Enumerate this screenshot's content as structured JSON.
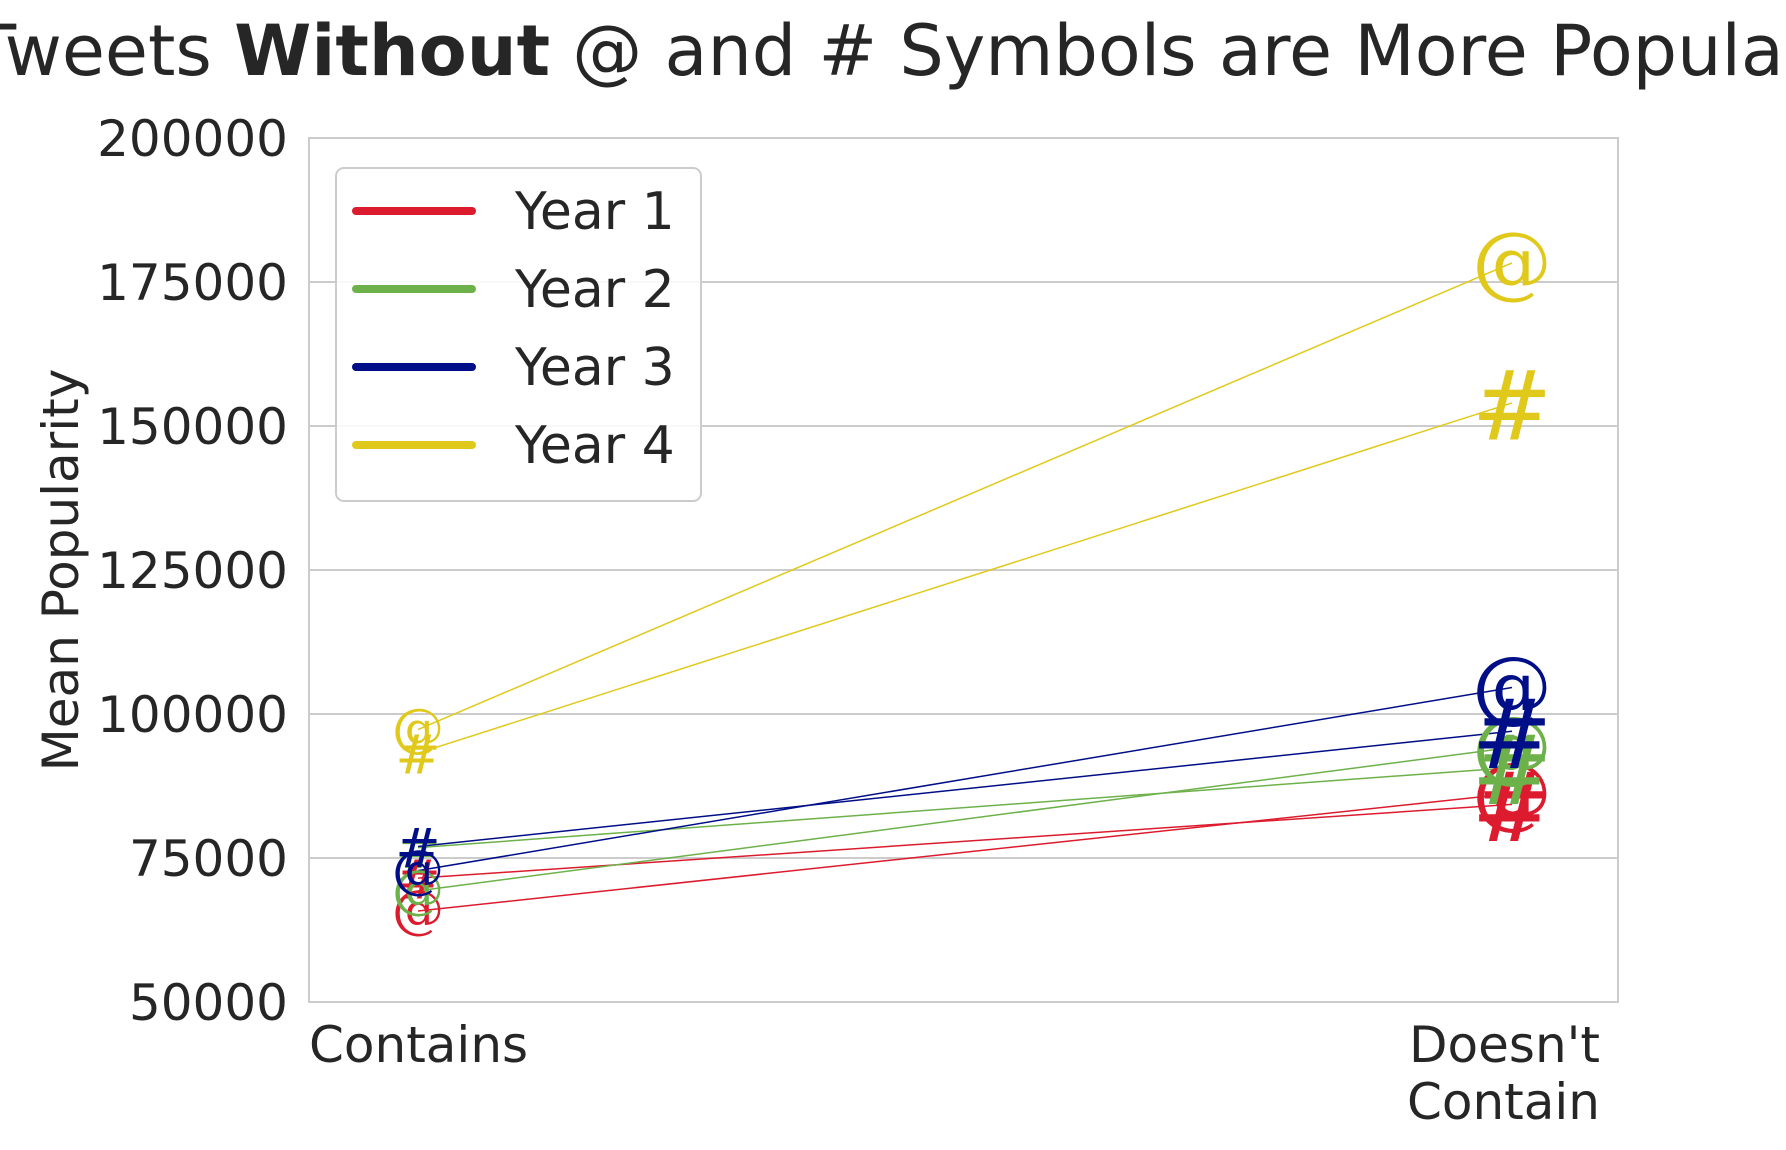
{
  "chart_data": {
    "type": "line",
    "title_parts": [
      "Tweets ",
      "Without",
      " @ and # Symbols are More Popular"
    ],
    "xlabel": "",
    "ylabel": "Mean Popularity",
    "categories": [
      [
        "Contains"
      ],
      [
        "Doesn't",
        "Contain"
      ]
    ],
    "ylim": [
      50000,
      200000
    ],
    "yticks": [
      "50000",
      "75000",
      "100000",
      "125000",
      "150000",
      "175000",
      "200000"
    ],
    "grid": "horizontal",
    "legend_position": "top-left",
    "marker_symbols": [
      "@",
      "#"
    ],
    "series": [
      {
        "name": "Year 1",
        "color": "#dc1c2e",
        "at": [
          65800,
          86200
        ],
        "hash": [
          71500,
          84300
        ]
      },
      {
        "name": "Year 2",
        "color": "#6db14a",
        "at": [
          69300,
          94200
        ],
        "hash": [
          76800,
          90700
        ]
      },
      {
        "name": "Year 3",
        "color": "#000e87",
        "at": [
          72800,
          104600
        ],
        "hash": [
          77000,
          97000
        ]
      },
      {
        "name": "Year 4",
        "color": "#e0c91b",
        "at": [
          97300,
          178300
        ],
        "hash": [
          93200,
          154000
        ]
      }
    ]
  }
}
